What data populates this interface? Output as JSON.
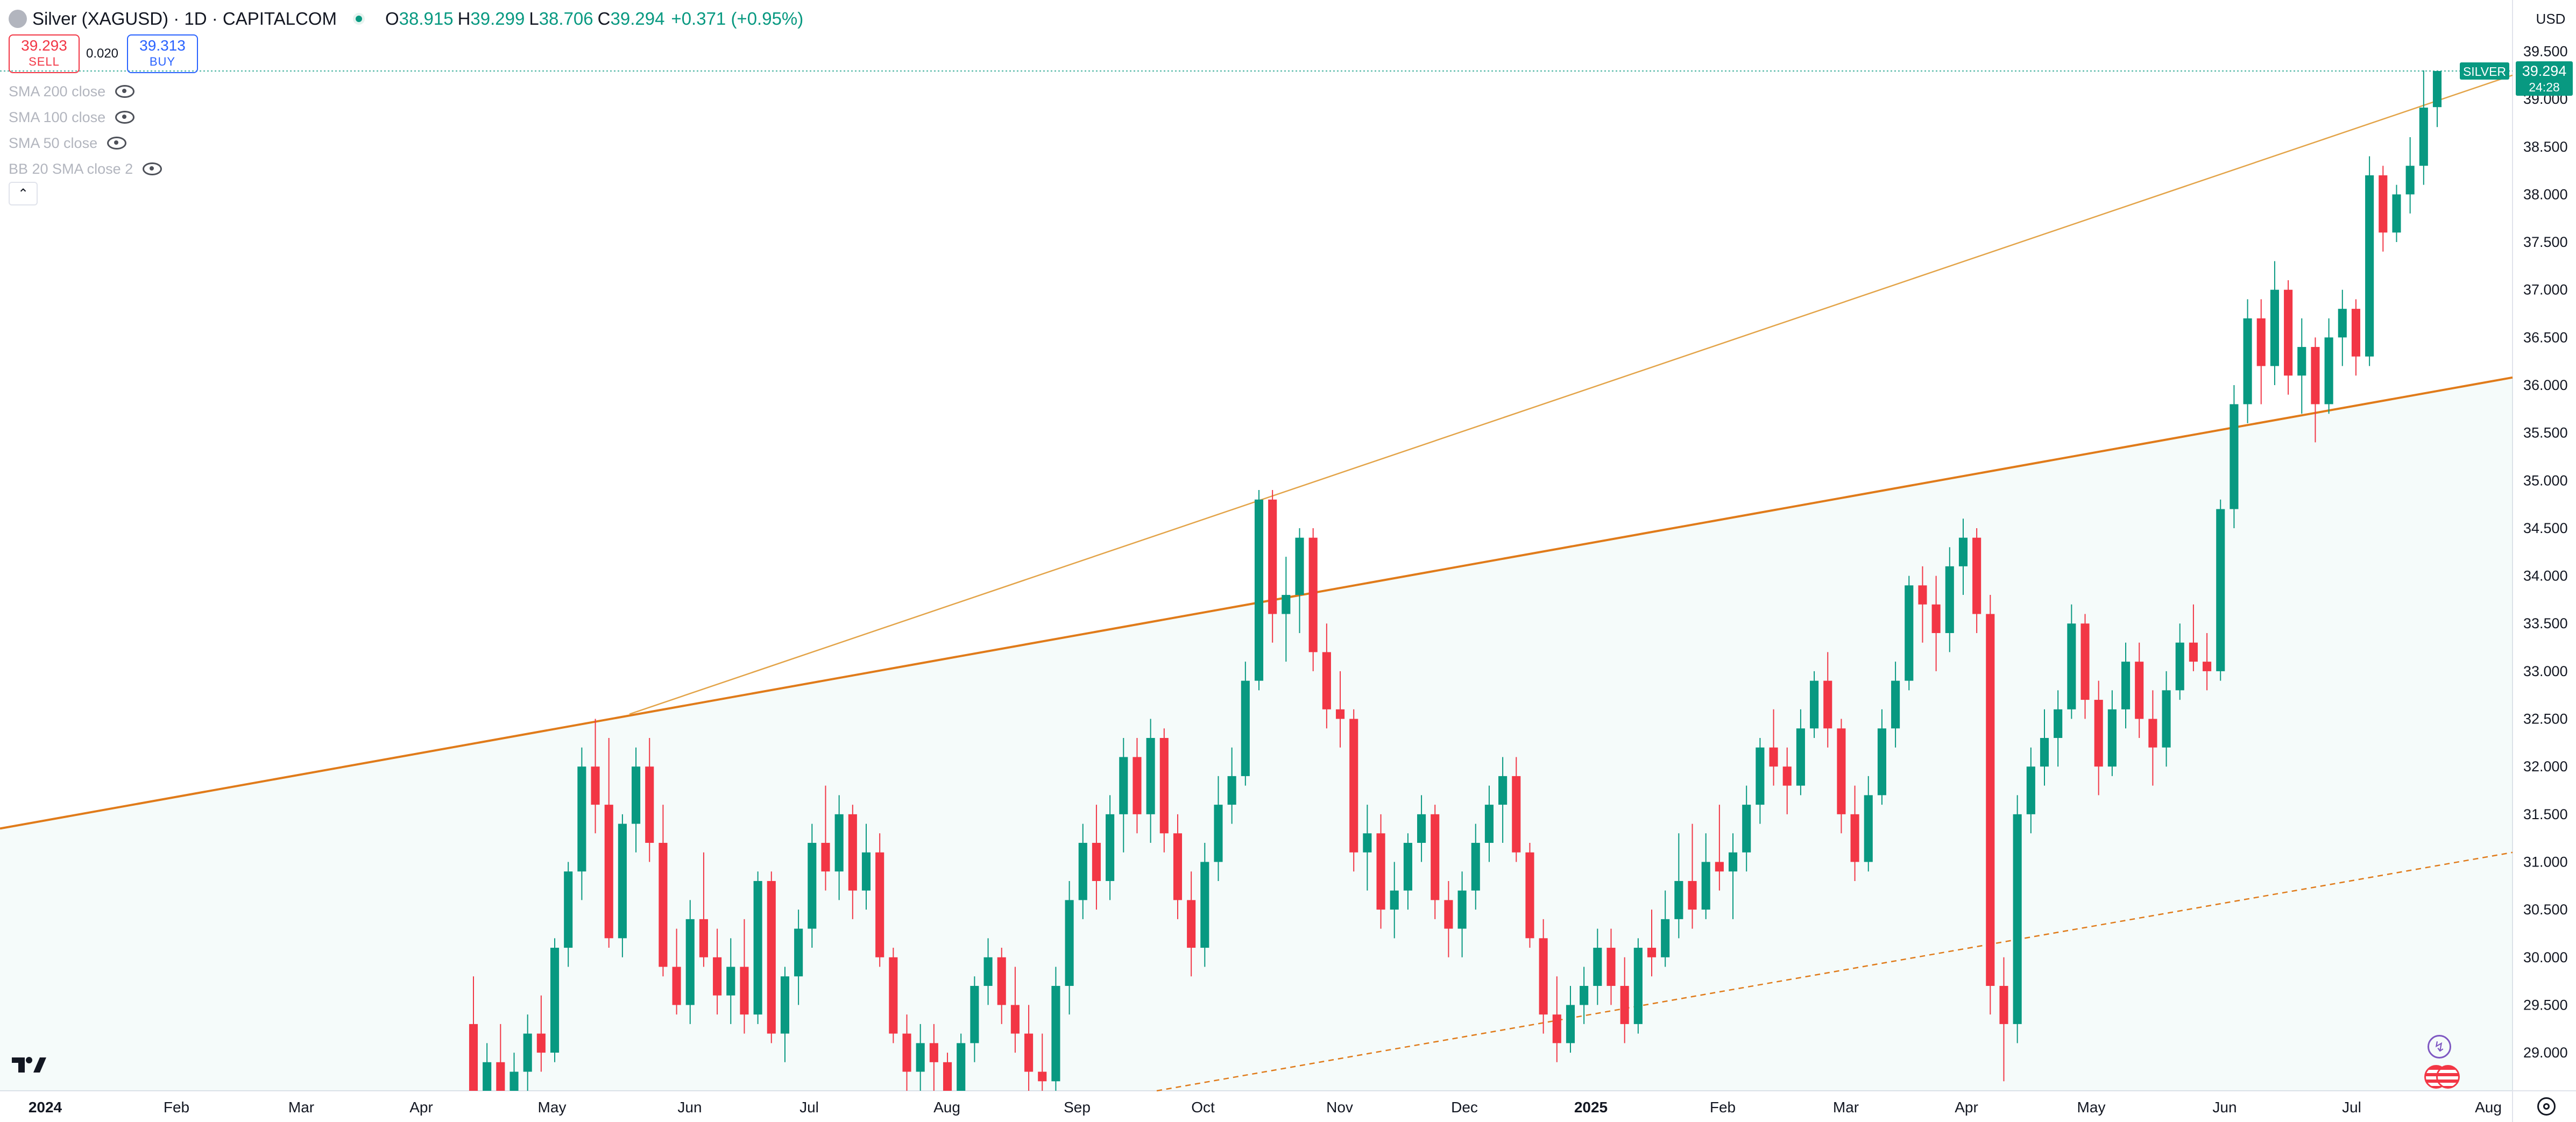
{
  "header": {
    "symbol_title": "Silver (XAGUSD) · 1D · CAPITALCOM",
    "open_label": "O",
    "open": "38.915",
    "high_label": "H",
    "high": "39.299",
    "low_label": "L",
    "low": "38.706",
    "close_label": "C",
    "close": "39.294",
    "change": "+0.371 (+0.95%)"
  },
  "trade": {
    "sell_price": "39.293",
    "sell_label": "SELL",
    "spread": "0.020",
    "buy_price": "39.313",
    "buy_label": "BUY"
  },
  "indicators": [
    {
      "label": "SMA 200 close"
    },
    {
      "label": "SMA 100 close"
    },
    {
      "label": "SMA 50 close"
    },
    {
      "label": "BB 20 SMA close 2"
    }
  ],
  "currency": "USD",
  "price_tag": {
    "symbol": "SILVER",
    "price": "39.294",
    "countdown": "24:28"
  },
  "colors": {
    "up": "#089981",
    "down": "#f23645",
    "trendline": "#e07b1a",
    "trendline_thin": "#e3a449",
    "accent": "#2962ff"
  },
  "chart_data": {
    "type": "candlestick",
    "ylim": [
      28.6,
      39.7
    ],
    "y_ticks": [
      "29.000",
      "29.500",
      "30.000",
      "30.500",
      "31.000",
      "31.500",
      "32.000",
      "32.500",
      "33.000",
      "33.500",
      "34.000",
      "34.500",
      "35.000",
      "35.500",
      "36.000",
      "36.500",
      "37.000",
      "37.500",
      "38.000",
      "38.500",
      "39.000",
      "39.500"
    ],
    "x_tick_labels": [
      {
        "label": "2024",
        "bold": true
      },
      {
        "label": "Feb"
      },
      {
        "label": "Mar"
      },
      {
        "label": "Apr"
      },
      {
        "label": "May"
      },
      {
        "label": "Jun"
      },
      {
        "label": "Jul"
      },
      {
        "label": "Aug"
      },
      {
        "label": "Sep"
      },
      {
        "label": "Oct"
      },
      {
        "label": "Nov"
      },
      {
        "label": "Dec"
      },
      {
        "label": "2025",
        "bold": true
      },
      {
        "label": "Feb"
      },
      {
        "label": "Mar"
      },
      {
        "label": "Apr"
      },
      {
        "label": "May"
      },
      {
        "label": "Jun"
      },
      {
        "label": "Jul"
      },
      {
        "label": "Aug"
      }
    ],
    "last_price": 39.294,
    "trendlines": [
      {
        "name": "",
        "style": "solid-thick",
        "from_price": 31.35,
        "to_price": 36.08
      },
      {
        "name": "",
        "style": "solid-thin",
        "from_price": 32.55,
        "to_price": 39.25
      },
      {
        "name": "",
        "style": "dashed",
        "from_price": 28.6,
        "to_price": 31.1
      }
    ],
    "ohlc": [
      [
        29.3,
        29.8,
        28.1,
        28.6
      ],
      [
        28.6,
        29.1,
        28.0,
        28.9
      ],
      [
        28.9,
        29.3,
        28.2,
        28.5
      ],
      [
        28.5,
        29.0,
        28.0,
        28.8
      ],
      [
        28.8,
        29.4,
        28.4,
        29.2
      ],
      [
        29.2,
        29.6,
        28.8,
        29.0
      ],
      [
        29.0,
        30.2,
        28.9,
        30.1
      ],
      [
        30.1,
        31.0,
        29.9,
        30.9
      ],
      [
        30.9,
        32.2,
        30.6,
        32.0
      ],
      [
        32.0,
        32.5,
        31.3,
        31.6
      ],
      [
        31.6,
        32.3,
        30.1,
        30.2
      ],
      [
        30.2,
        31.5,
        30.0,
        31.4
      ],
      [
        31.4,
        32.2,
        31.1,
        32.0
      ],
      [
        32.0,
        32.3,
        31.0,
        31.2
      ],
      [
        31.2,
        31.6,
        29.8,
        29.9
      ],
      [
        29.9,
        30.3,
        29.4,
        29.5
      ],
      [
        29.5,
        30.6,
        29.3,
        30.4
      ],
      [
        30.4,
        31.1,
        29.9,
        30.0
      ],
      [
        30.0,
        30.3,
        29.4,
        29.6
      ],
      [
        29.6,
        30.2,
        29.3,
        29.9
      ],
      [
        29.9,
        30.4,
        29.2,
        29.4
      ],
      [
        29.4,
        30.9,
        29.3,
        30.8
      ],
      [
        30.8,
        30.9,
        29.1,
        29.2
      ],
      [
        29.2,
        29.9,
        28.9,
        29.8
      ],
      [
        29.8,
        30.5,
        29.5,
        30.3
      ],
      [
        30.3,
        31.4,
        30.1,
        31.2
      ],
      [
        31.2,
        31.8,
        30.7,
        30.9
      ],
      [
        30.9,
        31.7,
        30.6,
        31.5
      ],
      [
        31.5,
        31.6,
        30.4,
        30.7
      ],
      [
        30.7,
        31.4,
        30.5,
        31.1
      ],
      [
        31.1,
        31.3,
        29.9,
        30.0
      ],
      [
        30.0,
        30.1,
        29.1,
        29.2
      ],
      [
        29.2,
        29.4,
        28.6,
        28.8
      ],
      [
        28.8,
        29.3,
        28.5,
        29.1
      ],
      [
        29.1,
        29.3,
        28.6,
        28.9
      ],
      [
        28.9,
        29.0,
        28.3,
        28.5
      ],
      [
        28.5,
        29.2,
        28.4,
        29.1
      ],
      [
        29.1,
        29.8,
        28.9,
        29.7
      ],
      [
        29.7,
        30.2,
        29.5,
        30.0
      ],
      [
        30.0,
        30.1,
        29.3,
        29.5
      ],
      [
        29.5,
        29.9,
        29.0,
        29.2
      ],
      [
        29.2,
        29.5,
        28.6,
        28.8
      ],
      [
        28.8,
        29.2,
        28.4,
        28.7
      ],
      [
        28.7,
        29.9,
        28.5,
        29.7
      ],
      [
        29.7,
        30.8,
        29.4,
        30.6
      ],
      [
        30.6,
        31.4,
        30.4,
        31.2
      ],
      [
        31.2,
        31.6,
        30.5,
        30.8
      ],
      [
        30.8,
        31.7,
        30.6,
        31.5
      ],
      [
        31.5,
        32.3,
        31.1,
        32.1
      ],
      [
        32.1,
        32.3,
        31.3,
        31.5
      ],
      [
        31.5,
        32.5,
        31.2,
        32.3
      ],
      [
        32.3,
        32.4,
        31.1,
        31.3
      ],
      [
        31.3,
        31.5,
        30.4,
        30.6
      ],
      [
        30.6,
        30.9,
        29.8,
        30.1
      ],
      [
        30.1,
        31.2,
        29.9,
        31.0
      ],
      [
        31.0,
        31.9,
        30.8,
        31.6
      ],
      [
        31.6,
        32.2,
        31.4,
        31.9
      ],
      [
        31.9,
        33.1,
        31.8,
        32.9
      ],
      [
        32.9,
        34.9,
        32.8,
        34.8
      ],
      [
        34.8,
        34.9,
        33.3,
        33.6
      ],
      [
        33.6,
        34.2,
        33.1,
        33.8
      ],
      [
        33.8,
        34.5,
        33.4,
        34.4
      ],
      [
        34.4,
        34.5,
        33.0,
        33.2
      ],
      [
        33.2,
        33.5,
        32.4,
        32.6
      ],
      [
        32.6,
        33.0,
        32.2,
        32.5
      ],
      [
        32.5,
        32.6,
        30.9,
        31.1
      ],
      [
        31.1,
        31.6,
        30.7,
        31.3
      ],
      [
        31.3,
        31.5,
        30.3,
        30.5
      ],
      [
        30.5,
        31.0,
        30.2,
        30.7
      ],
      [
        30.7,
        31.3,
        30.5,
        31.2
      ],
      [
        31.2,
        31.7,
        31.0,
        31.5
      ],
      [
        31.5,
        31.6,
        30.4,
        30.6
      ],
      [
        30.6,
        30.8,
        30.0,
        30.3
      ],
      [
        30.3,
        30.9,
        30.0,
        30.7
      ],
      [
        30.7,
        31.4,
        30.5,
        31.2
      ],
      [
        31.2,
        31.8,
        31.0,
        31.6
      ],
      [
        31.6,
        32.1,
        31.2,
        31.9
      ],
      [
        31.9,
        32.1,
        31.0,
        31.1
      ],
      [
        31.1,
        31.2,
        30.1,
        30.2
      ],
      [
        30.2,
        30.4,
        29.2,
        29.4
      ],
      [
        29.4,
        29.8,
        28.9,
        29.1
      ],
      [
        29.1,
        29.7,
        29.0,
        29.5
      ],
      [
        29.5,
        29.9,
        29.3,
        29.7
      ],
      [
        29.7,
        30.3,
        29.5,
        30.1
      ],
      [
        30.1,
        30.3,
        29.5,
        29.7
      ],
      [
        29.7,
        30.0,
        29.1,
        29.3
      ],
      [
        29.3,
        30.2,
        29.2,
        30.1
      ],
      [
        30.1,
        30.5,
        29.8,
        30.0
      ],
      [
        30.0,
        30.7,
        29.9,
        30.4
      ],
      [
        30.4,
        31.3,
        30.2,
        30.8
      ],
      [
        30.8,
        31.4,
        30.3,
        30.5
      ],
      [
        30.5,
        31.3,
        30.4,
        31.0
      ],
      [
        31.0,
        31.6,
        30.7,
        30.9
      ],
      [
        30.9,
        31.3,
        30.4,
        31.1
      ],
      [
        31.1,
        31.8,
        30.9,
        31.6
      ],
      [
        31.6,
        32.3,
        31.4,
        32.2
      ],
      [
        32.2,
        32.6,
        31.8,
        32.0
      ],
      [
        32.0,
        32.2,
        31.5,
        31.8
      ],
      [
        31.8,
        32.6,
        31.7,
        32.4
      ],
      [
        32.4,
        33.0,
        32.3,
        32.9
      ],
      [
        32.9,
        33.2,
        32.2,
        32.4
      ],
      [
        32.4,
        32.5,
        31.3,
        31.5
      ],
      [
        31.5,
        31.8,
        30.8,
        31.0
      ],
      [
        31.0,
        31.9,
        30.9,
        31.7
      ],
      [
        31.7,
        32.6,
        31.6,
        32.4
      ],
      [
        32.4,
        33.1,
        32.2,
        32.9
      ],
      [
        32.9,
        34.0,
        32.8,
        33.9
      ],
      [
        33.9,
        34.1,
        33.3,
        33.7
      ],
      [
        33.7,
        34.0,
        33.0,
        33.4
      ],
      [
        33.4,
        34.3,
        33.2,
        34.1
      ],
      [
        34.1,
        34.6,
        33.8,
        34.4
      ],
      [
        34.4,
        34.5,
        33.4,
        33.6
      ],
      [
        33.6,
        33.8,
        29.4,
        29.7
      ],
      [
        29.7,
        30.0,
        28.7,
        29.3
      ],
      [
        29.3,
        31.7,
        29.1,
        31.5
      ],
      [
        31.5,
        32.2,
        31.3,
        32.0
      ],
      [
        32.0,
        32.6,
        31.8,
        32.3
      ],
      [
        32.3,
        32.8,
        32.0,
        32.6
      ],
      [
        32.6,
        33.7,
        32.5,
        33.5
      ],
      [
        33.5,
        33.6,
        32.5,
        32.7
      ],
      [
        32.7,
        32.9,
        31.7,
        32.0
      ],
      [
        32.0,
        32.8,
        31.9,
        32.6
      ],
      [
        32.6,
        33.3,
        32.4,
        33.1
      ],
      [
        33.1,
        33.3,
        32.3,
        32.5
      ],
      [
        32.5,
        32.8,
        31.8,
        32.2
      ],
      [
        32.2,
        33.0,
        32.0,
        32.8
      ],
      [
        32.8,
        33.5,
        32.7,
        33.3
      ],
      [
        33.3,
        33.7,
        33.0,
        33.1
      ],
      [
        33.1,
        33.4,
        32.8,
        33.0
      ],
      [
        33.0,
        34.8,
        32.9,
        34.7
      ],
      [
        34.7,
        36.0,
        34.5,
        35.8
      ],
      [
        35.8,
        36.9,
        35.6,
        36.7
      ],
      [
        36.7,
        36.9,
        35.8,
        36.2
      ],
      [
        36.2,
        37.3,
        36.0,
        37.0
      ],
      [
        37.0,
        37.1,
        35.9,
        36.1
      ],
      [
        36.1,
        36.7,
        35.7,
        36.4
      ],
      [
        36.4,
        36.5,
        35.4,
        35.8
      ],
      [
        35.8,
        36.7,
        35.7,
        36.5
      ],
      [
        36.5,
        37.0,
        36.2,
        36.8
      ],
      [
        36.8,
        36.9,
        36.1,
        36.3
      ],
      [
        36.3,
        38.4,
        36.2,
        38.2
      ],
      [
        38.2,
        38.3,
        37.4,
        37.6
      ],
      [
        37.6,
        38.1,
        37.5,
        38.0
      ],
      [
        38.0,
        38.6,
        37.8,
        38.3
      ],
      [
        38.3,
        39.3,
        38.1,
        38.91
      ],
      [
        38.915,
        39.299,
        38.706,
        39.294
      ]
    ]
  }
}
